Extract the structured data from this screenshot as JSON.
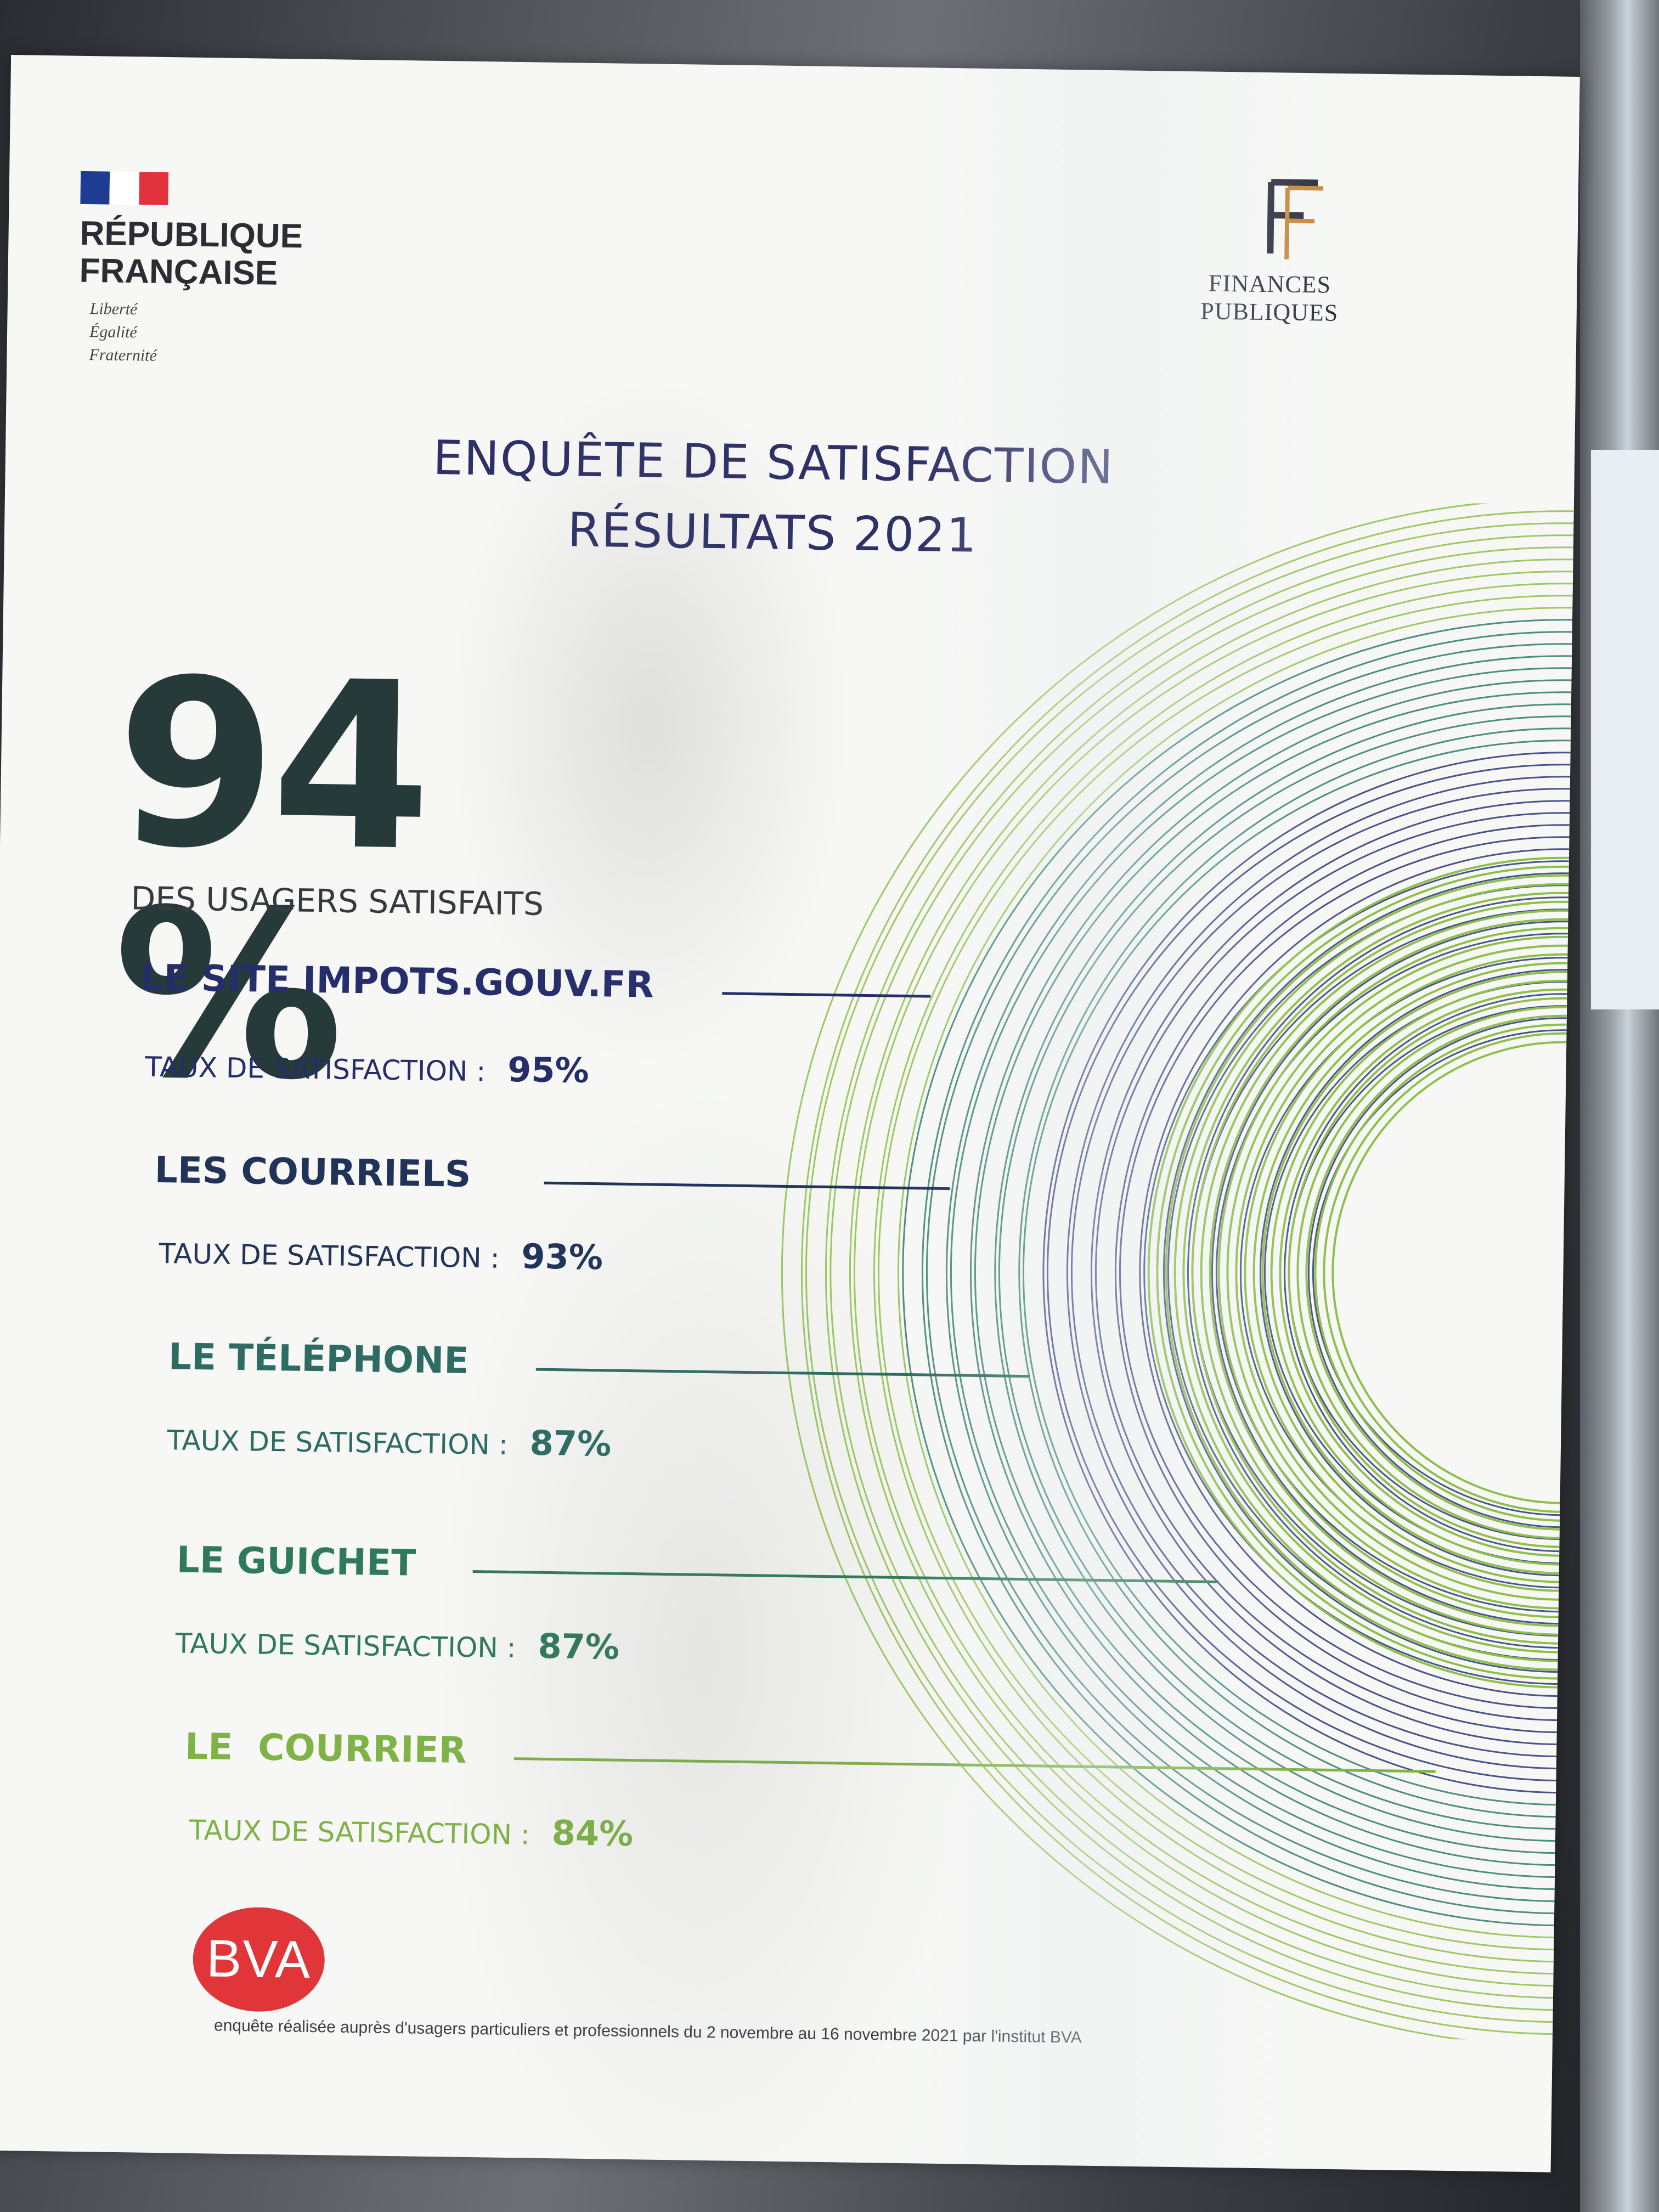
{
  "header": {
    "left_logo": {
      "name": "RÉPUBLIQUE\nFRANÇAISE",
      "motto": "Liberté\nÉgalité\nFraternité"
    },
    "right_logo": {
      "initials": "FP",
      "name": "FINANCES PUBLIQUES"
    }
  },
  "title": {
    "line1": "ENQUÊTE DE SATISFACTION",
    "line2": "RÉSULTATS 2021"
  },
  "headline": {
    "value": "94 %",
    "caption": "DES USAGERS SATISFAITS"
  },
  "rate_label": "TAUX DE SATISFACTION :",
  "channels": [
    {
      "name": "LE SITE IMPOTS.GOUV.FR",
      "rate": "95%",
      "color": "#262d6b"
    },
    {
      "name": "LES COURRIELS",
      "rate": "93%",
      "color": "#22335a"
    },
    {
      "name": "LE TÉLÉPHONE",
      "rate": "87%",
      "color": "#2d6b63"
    },
    {
      "name": "LE GUICHET",
      "rate": "87%",
      "color": "#2f7a58"
    },
    {
      "name": "LE  COURRIER",
      "rate": "84%",
      "color": "#7fb247"
    }
  ],
  "footer": {
    "logo_text": "BVA",
    "note": "enquête réalisée auprès d'usagers particuliers et professionnels du 2 novembre au 16 novembre 2021 par l'institut BVA"
  },
  "colors": {
    "brand_navy": "#2d3168",
    "flag_blue": "#1f3c95",
    "flag_red": "#e1323e",
    "bva_red": "#e0363a",
    "green_light": "#8dc04a"
  }
}
